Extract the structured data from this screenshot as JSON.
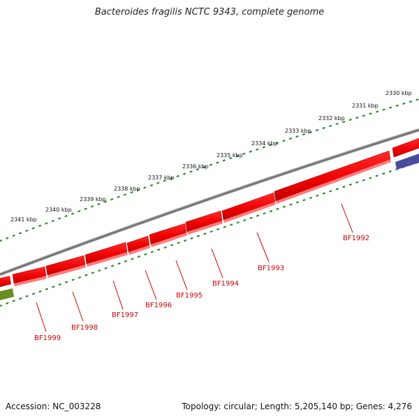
{
  "title": "Bacteroides fragilis NCTC 9343, complete genome",
  "accession": "Accession: NC_003228",
  "summary": "Topology: circular; Length: 5,205,140 bp; Genes: 4,276",
  "colors": {
    "backbone": "#7a7a7a",
    "ruler_dots": "#2e8b2e",
    "gene_forward": "#ee0000",
    "gene_other_blue": "#4b4b9e",
    "gene_other_green": "#6b8e23",
    "label": "#cc0000"
  },
  "kbp_labels": [
    "2330 kbp",
    "2331 kbp",
    "2332 kbp",
    "2333 kbp",
    "2334 kbp",
    "2335 kbp",
    "2336 kbp",
    "2337 kbp",
    "2338 kbp",
    "2339 kbp",
    "2340 kbp",
    "2341 kbp"
  ],
  "genes": [
    {
      "name": "BF1992"
    },
    {
      "name": "BF1993"
    },
    {
      "name": "BF1994"
    },
    {
      "name": "BF1995"
    },
    {
      "name": "BF1996"
    },
    {
      "name": "BF1997"
    },
    {
      "name": "BF1998"
    },
    {
      "name": "BF1999"
    }
  ]
}
